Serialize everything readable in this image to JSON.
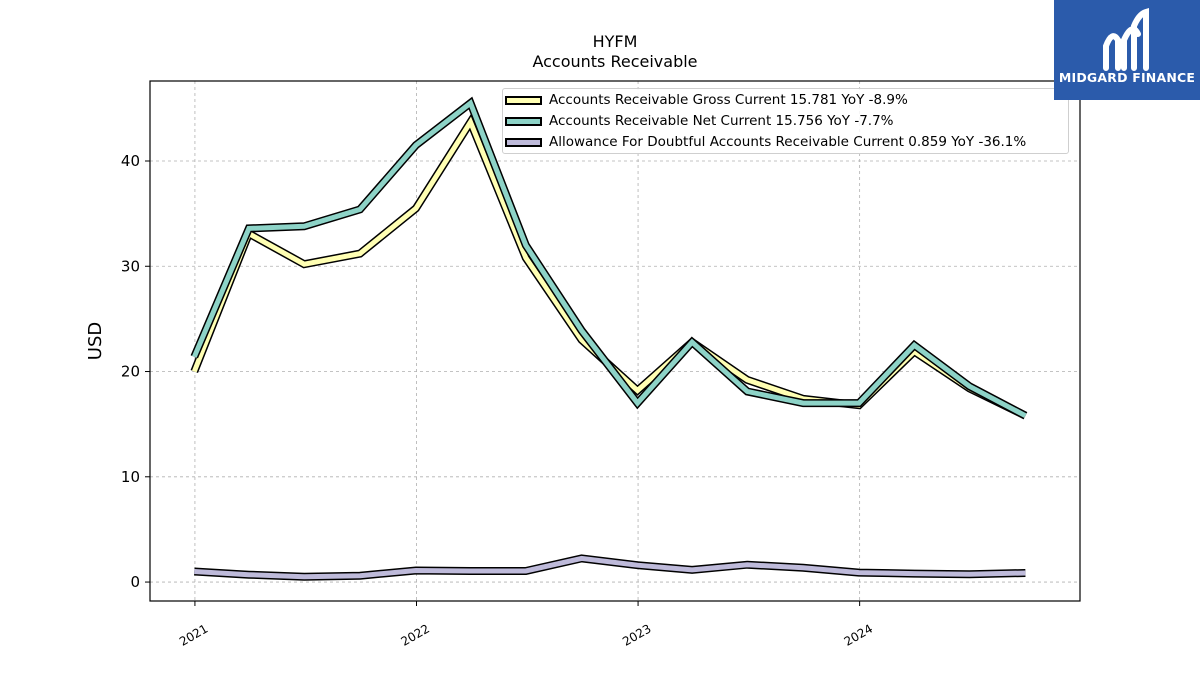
{
  "header": {
    "ticker": "HYFM",
    "subtitle": "Accounts Receivable"
  },
  "logo": {
    "text": "MIDGARD FINANCE",
    "icon": "stylized-m-logo-icon",
    "background": "#2b5bab"
  },
  "chart_data": {
    "type": "line",
    "title": "HYFM\nAccounts Receivable",
    "ylabel": "USD",
    "xlabel": "",
    "ylim": [
      -1.8,
      47.6
    ],
    "xlim": [
      "2020-10-19",
      "2024-12-29"
    ],
    "xticks": [
      {
        "date": "2021-01-01",
        "label": "2021"
      },
      {
        "date": "2022-01-01",
        "label": "2022"
      },
      {
        "date": "2023-01-01",
        "label": "2023"
      },
      {
        "date": "2024-01-01",
        "label": "2024"
      }
    ],
    "yticks": [
      0,
      10,
      20,
      30,
      40
    ],
    "grid": true,
    "legend_position": "top-right",
    "x": [
      "2020-12-31",
      "2021-03-31",
      "2021-06-30",
      "2021-09-30",
      "2021-12-31",
      "2022-03-31",
      "2022-06-30",
      "2022-09-30",
      "2022-12-31",
      "2023-03-31",
      "2023-06-30",
      "2023-09-30",
      "2023-12-31",
      "2024-03-31",
      "2024-06-30",
      "2024-09-30"
    ],
    "series": [
      {
        "name": "Accounts Receivable Gross Current",
        "legend_label": "Accounts Receivable Gross Current  15.781 YoY -8.9%",
        "color": "#ffffb3",
        "values": [
          20.0,
          33.1,
          30.2,
          31.2,
          35.5,
          43.7,
          30.8,
          23.0,
          18.2,
          22.8,
          19.2,
          17.4,
          16.8,
          21.9,
          18.4,
          15.8
        ]
      },
      {
        "name": "Accounts Receivable Net Current",
        "legend_label": "Accounts Receivable Net Current  15.756 YoY -7.7%",
        "color": "#8dd3c7",
        "values": [
          21.4,
          33.6,
          33.8,
          35.4,
          41.5,
          45.5,
          32.0,
          23.9,
          17.0,
          22.8,
          18.1,
          17.0,
          17.0,
          22.5,
          18.6,
          15.8
        ]
      },
      {
        "name": "Allowance For Doubtful Accounts Receivable Current",
        "legend_label": "Allowance For Doubtful Accounts Receivable Current  0.859 YoY -36.1%",
        "color": "#bebada",
        "values": [
          1.0,
          0.7,
          0.5,
          0.6,
          1.1,
          1.05,
          1.05,
          2.25,
          1.6,
          1.15,
          1.65,
          1.35,
          0.9,
          0.8,
          0.75,
          0.86
        ]
      }
    ]
  }
}
